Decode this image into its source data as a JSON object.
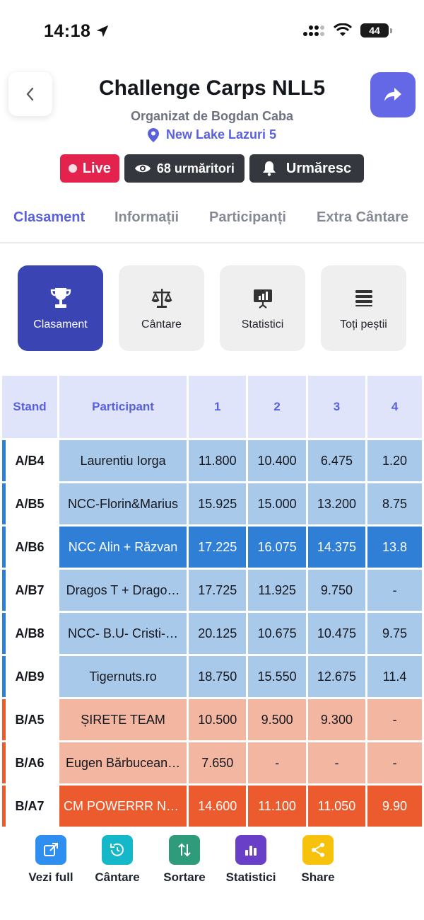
{
  "status": {
    "time": "14:18",
    "battery": "44"
  },
  "header": {
    "title": "Challenge Carps NLL5",
    "organizer": "Organizat de Bogdan Caba",
    "location": "New Lake Lazuri 5"
  },
  "badges": {
    "live": "Live",
    "followers": "68 urmăritori",
    "follow": "Urmăresc"
  },
  "tabs": [
    "Clasament",
    "Informații",
    "Participanți",
    "Extra Cântare"
  ],
  "cards": [
    "Clasament",
    "Cântare",
    "Statistici",
    "Toți peștii"
  ],
  "table": {
    "headers": [
      "Stand",
      "Participant",
      "1",
      "2",
      "3",
      "4"
    ],
    "rows": [
      {
        "stand": "A/B4",
        "participant": "Laurentiu Iorga",
        "values": [
          "11.800",
          "10.400",
          "6.475",
          "1.20"
        ]
      },
      {
        "stand": "A/B5",
        "participant": "NCC-Florin&Marius",
        "values": [
          "15.925",
          "15.000",
          "13.200",
          "8.75"
        ]
      },
      {
        "stand": "A/B6",
        "participant": "NCC Alin + Răzvan",
        "values": [
          "17.225",
          "16.075",
          "14.375",
          "13.8"
        ]
      },
      {
        "stand": "A/B7",
        "participant": "Dragos T + Drago…",
        "values": [
          "17.725",
          "11.925",
          "9.750",
          "-"
        ]
      },
      {
        "stand": "A/B8",
        "participant": "NCC- B.U- Cristi-…",
        "values": [
          "20.125",
          "10.675",
          "10.475",
          "9.75"
        ]
      },
      {
        "stand": "A/B9",
        "participant": "Tigernuts.ro",
        "values": [
          "18.750",
          "15.550",
          "12.675",
          "11.4"
        ]
      },
      {
        "stand": "B/A5",
        "participant": "ȘIRETE TEAM",
        "values": [
          "10.500",
          "9.500",
          "9.300",
          "-"
        ]
      },
      {
        "stand": "B/A6",
        "participant": "Eugen Bărbucean…",
        "values": [
          "7.650",
          "-",
          "-",
          "-"
        ]
      },
      {
        "stand": "B/A7",
        "participant": "CM POWERRR Ne…",
        "values": [
          "14.600",
          "11.100",
          "11.050",
          "9.90"
        ]
      }
    ]
  },
  "bottom_bar": [
    "Vezi full",
    "Cântare",
    "Sortare",
    "Statistici",
    "Share"
  ],
  "colors": {
    "accent": "#5a61dd",
    "live": "#e3224d",
    "group_a": "#2f7fd6",
    "group_b": "#ec5b2e"
  }
}
